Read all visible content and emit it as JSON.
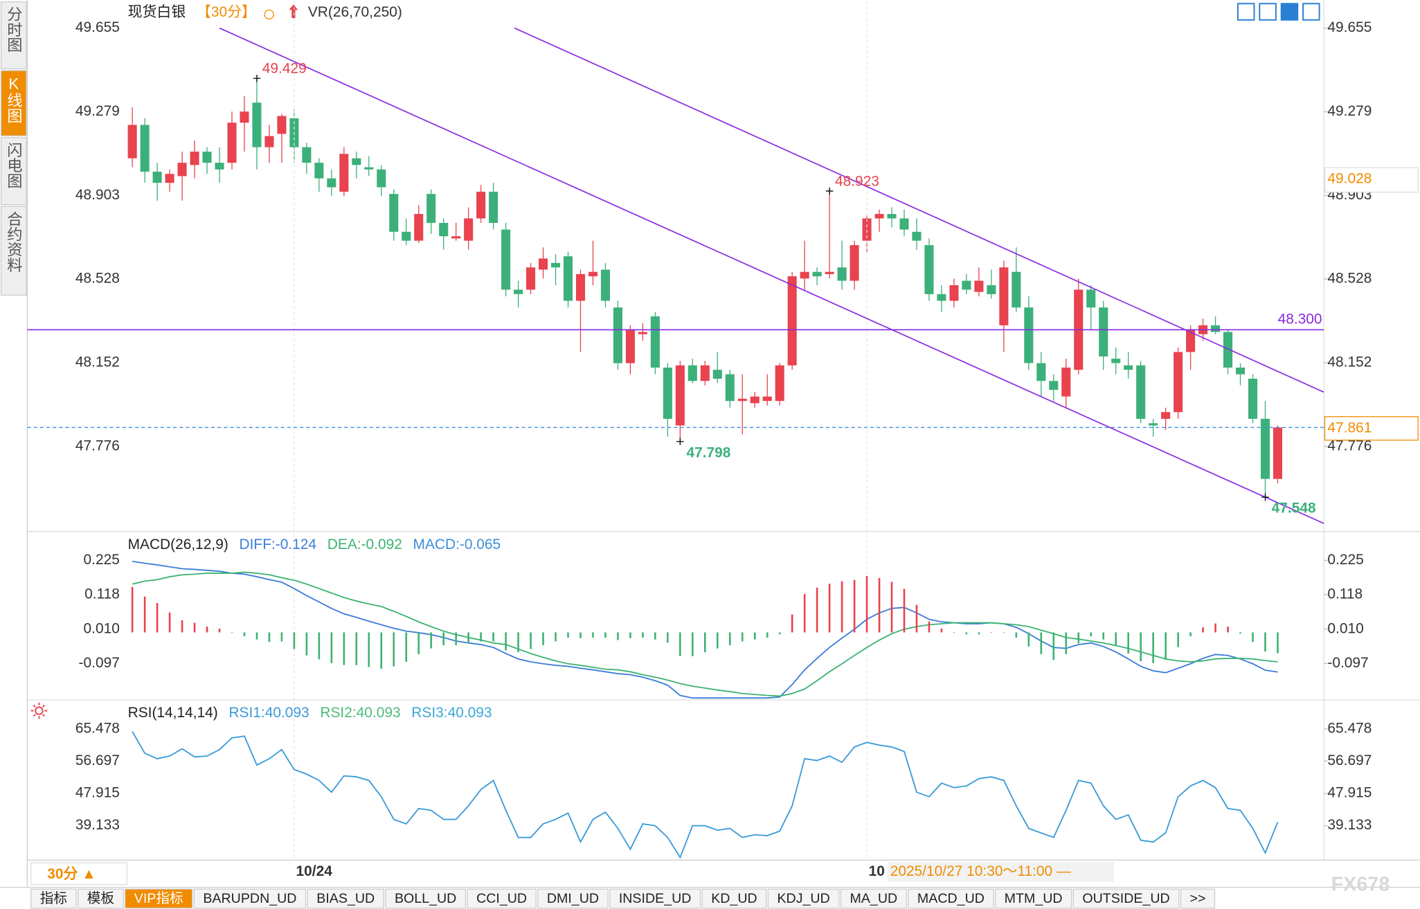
{
  "sidebar": [
    "分时图",
    "K线图",
    "闪电图",
    "合约资料"
  ],
  "chart_data": [
    {
      "type": "candlestick",
      "title": "现货白银",
      "period": "【30分】",
      "indicator": "VR(26,70,250)",
      "categories": [
        null,
        null,
        null,
        null,
        null,
        null,
        null,
        null,
        null,
        null,
        null,
        null,
        null,
        "10/24",
        null,
        null,
        null,
        null,
        null,
        null,
        null,
        null,
        null,
        null,
        null,
        null,
        null,
        null,
        null,
        null,
        null,
        null,
        null,
        null,
        null,
        null,
        null,
        null,
        null,
        null,
        null,
        null,
        null,
        null,
        null,
        null,
        null,
        null,
        null,
        null,
        null,
        null,
        null,
        null,
        null,
        null,
        null,
        null,
        null,
        "10",
        null,
        null,
        null,
        null,
        null,
        null,
        null,
        null,
        null,
        null,
        null,
        null,
        null,
        null,
        null,
        null,
        null,
        null,
        null,
        null,
        null,
        null,
        null,
        null,
        null,
        null,
        null,
        null,
        null,
        null,
        null,
        null,
        null
      ],
      "open": [
        49.07,
        49.22,
        49.01,
        48.96,
        48.99,
        49.04,
        49.1,
        49.05,
        49.05,
        49.23,
        49.32,
        49.12,
        49.18,
        49.25,
        49.12,
        49.05,
        48.98,
        48.92,
        49.07,
        49.03,
        49.02,
        48.91,
        48.74,
        48.7,
        48.91,
        48.78,
        48.71,
        48.7,
        48.8,
        48.92,
        48.75,
        48.48,
        48.48,
        48.57,
        48.6,
        48.63,
        48.43,
        48.54,
        48.57,
        48.4,
        48.15,
        48.28,
        48.36,
        48.13,
        47.87,
        48.14,
        48.07,
        48.12,
        48.1,
        47.98,
        47.97,
        47.98,
        47.98,
        48.14,
        48.53,
        48.56,
        48.55,
        48.58,
        48.52,
        48.7,
        48.8,
        48.82,
        48.8,
        48.74,
        48.68,
        48.46,
        48.43,
        48.52,
        48.47,
        48.5,
        48.32,
        48.56,
        48.4,
        48.15,
        48.07,
        48.0,
        48.12,
        48.48,
        48.4,
        48.17,
        48.14,
        48.14,
        47.88,
        47.9,
        47.93,
        48.2,
        48.28,
        48.32,
        48.29,
        48.13,
        48.08,
        47.9,
        47.63
      ],
      "high": [
        49.3,
        49.25,
        49.05,
        49.02,
        49.1,
        49.15,
        49.12,
        49.12,
        49.28,
        49.35,
        49.429,
        49.22,
        49.27,
        49.29,
        49.14,
        49.07,
        49.02,
        49.12,
        49.1,
        49.08,
        49.04,
        48.93,
        48.8,
        48.86,
        48.93,
        48.8,
        48.78,
        48.85,
        48.95,
        48.96,
        48.78,
        48.52,
        48.6,
        48.67,
        48.64,
        48.65,
        48.57,
        48.7,
        48.6,
        48.43,
        48.32,
        48.33,
        48.38,
        48.15,
        48.16,
        48.17,
        48.16,
        48.2,
        48.12,
        48.1,
        48.02,
        48.1,
        48.15,
        48.56,
        48.7,
        48.58,
        48.923,
        48.7,
        48.7,
        48.82,
        48.84,
        48.85,
        48.84,
        48.8,
        48.71,
        48.5,
        48.53,
        48.55,
        48.58,
        48.57,
        48.61,
        48.67,
        48.45,
        48.2,
        48.1,
        48.17,
        48.53,
        48.5,
        48.43,
        48.22,
        48.2,
        48.16,
        47.9,
        47.95,
        48.22,
        48.32,
        48.35,
        48.36,
        48.3,
        48.15,
        48.1,
        47.98,
        47.87
      ],
      "low": [
        49.03,
        48.96,
        48.88,
        48.92,
        48.88,
        48.98,
        49.0,
        48.96,
        49.02,
        49.1,
        49.02,
        49.05,
        49.05,
        49.05,
        49.0,
        48.92,
        48.9,
        48.9,
        48.98,
        48.99,
        48.9,
        48.7,
        48.68,
        48.69,
        48.73,
        48.66,
        48.7,
        48.66,
        48.78,
        48.75,
        48.45,
        48.4,
        48.46,
        48.53,
        48.5,
        48.4,
        48.2,
        48.5,
        48.4,
        48.12,
        48.1,
        48.25,
        48.1,
        47.82,
        47.798,
        48.06,
        48.05,
        48.06,
        47.95,
        47.83,
        47.95,
        47.96,
        47.96,
        48.12,
        48.48,
        48.5,
        48.53,
        48.48,
        48.48,
        48.65,
        48.74,
        48.76,
        48.72,
        48.66,
        48.43,
        48.38,
        48.4,
        48.46,
        48.45,
        48.44,
        48.2,
        48.38,
        48.12,
        48.0,
        47.98,
        47.95,
        48.1,
        48.3,
        48.12,
        48.1,
        48.08,
        47.88,
        47.82,
        47.85,
        47.9,
        48.12,
        48.25,
        48.28,
        48.1,
        48.05,
        47.88,
        47.548,
        47.61
      ],
      "close": [
        49.22,
        49.01,
        48.96,
        49.0,
        49.05,
        49.1,
        49.05,
        49.02,
        49.23,
        49.28,
        49.12,
        49.17,
        49.26,
        49.12,
        49.05,
        48.98,
        48.94,
        49.09,
        49.04,
        49.02,
        48.94,
        48.74,
        48.7,
        48.82,
        48.78,
        48.72,
        48.72,
        48.8,
        48.92,
        48.78,
        48.48,
        48.46,
        48.58,
        48.62,
        48.58,
        48.43,
        48.55,
        48.56,
        48.43,
        48.15,
        48.3,
        48.29,
        48.13,
        47.9,
        48.14,
        48.07,
        48.14,
        48.08,
        47.98,
        47.99,
        48.0,
        48.0,
        48.14,
        48.54,
        48.56,
        48.54,
        48.56,
        48.52,
        48.68,
        48.8,
        48.82,
        48.8,
        48.75,
        48.7,
        48.46,
        48.43,
        48.5,
        48.48,
        48.52,
        48.46,
        48.58,
        48.4,
        48.15,
        48.07,
        48.03,
        48.13,
        48.48,
        48.4,
        48.18,
        48.15,
        48.12,
        47.9,
        47.87,
        47.93,
        48.2,
        48.3,
        48.32,
        48.29,
        48.13,
        48.1,
        47.9,
        47.63,
        47.861
      ],
      "up_color": "#e8434e",
      "down_color": "#3cb07a",
      "ylim": [
        47.398,
        49.773
      ],
      "yticks": [
        49.655,
        49.279,
        48.903,
        48.528,
        48.152,
        47.776
      ],
      "high_marks": [
        {
          "index": 10,
          "value": 49.429
        },
        {
          "index": 56,
          "value": 48.923
        }
      ],
      "low_marks": [
        {
          "index": 44,
          "value": 47.798
        },
        {
          "index": 91,
          "value": 47.548
        }
      ],
      "hline": {
        "value": 48.3,
        "label": "48.300",
        "color": "#8a2be2"
      },
      "trendlines": [
        {
          "start": [
            7,
            49.655
          ],
          "end": [
            95.7,
            47.43
          ]
        },
        {
          "start": [
            30.7,
            49.655
          ],
          "end": [
            95.7,
            48.02
          ]
        }
      ],
      "trendline_color": "#8a2be2",
      "last_price": {
        "value": 47.861,
        "color": "#3d8fe0",
        "label_color": "#f08c00"
      },
      "crosshair_price": 49.028,
      "cursor_time": "2025/10/27 10:30～11:00 —"
    },
    {
      "type": "macd",
      "title": "MACD(26,12,9)",
      "ylim": [
        -0.208,
        0.307
      ],
      "yticks": [
        0.225,
        0.118,
        {
          "value": 0.01,
          "label": "0.010"
        },
        -0.097
      ],
      "series": [
        {
          "name": "DIFF:-0.124",
          "color": "#3b7dd8",
          "values": [
            0.222,
            0.216,
            0.211,
            0.205,
            0.199,
            0.197,
            0.194,
            0.191,
            0.185,
            0.182,
            0.174,
            0.165,
            0.157,
            0.137,
            0.115,
            0.095,
            0.075,
            0.058,
            0.047,
            0.035,
            0.024,
            0.013,
            0.004,
            -0.001,
            -0.007,
            -0.016,
            -0.027,
            -0.033,
            -0.038,
            -0.047,
            -0.066,
            -0.083,
            -0.092,
            -0.098,
            -0.103,
            -0.106,
            -0.112,
            -0.117,
            -0.123,
            -0.129,
            -0.132,
            -0.14,
            -0.151,
            -0.165,
            -0.197,
            -0.205,
            -0.205,
            -0.205,
            -0.205,
            -0.205,
            -0.205,
            -0.205,
            -0.202,
            -0.163,
            -0.117,
            -0.081,
            -0.047,
            -0.018,
            0.01,
            0.041,
            0.061,
            0.075,
            0.078,
            0.061,
            0.041,
            0.033,
            0.03,
            0.027,
            0.027,
            0.03,
            0.027,
            0.016,
            -0.004,
            -0.027,
            -0.047,
            -0.05,
            -0.038,
            -0.033,
            -0.044,
            -0.061,
            -0.083,
            -0.106,
            -0.12,
            -0.126,
            -0.112,
            -0.098,
            -0.081,
            -0.069,
            -0.072,
            -0.083,
            -0.098,
            -0.118,
            -0.124
          ]
        },
        {
          "name": "DEA:-0.092",
          "color": "#3cb371",
          "values": [
            0.151,
            0.16,
            0.165,
            0.174,
            0.18,
            0.182,
            0.185,
            0.185,
            0.185,
            0.188,
            0.185,
            0.18,
            0.171,
            0.163,
            0.151,
            0.137,
            0.123,
            0.109,
            0.098,
            0.089,
            0.081,
            0.066,
            0.05,
            0.033,
            0.018,
            0.004,
            -0.007,
            -0.016,
            -0.024,
            -0.033,
            -0.038,
            -0.052,
            -0.066,
            -0.078,
            -0.089,
            -0.098,
            -0.103,
            -0.109,
            -0.115,
            -0.117,
            -0.123,
            -0.132,
            -0.14,
            -0.149,
            -0.16,
            -0.168,
            -0.174,
            -0.18,
            -0.185,
            -0.191,
            -0.194,
            -0.197,
            -0.199,
            -0.191,
            -0.177,
            -0.151,
            -0.123,
            -0.098,
            -0.072,
            -0.047,
            -0.024,
            -0.004,
            0.01,
            0.018,
            0.024,
            0.027,
            0.03,
            0.03,
            0.03,
            0.03,
            0.027,
            0.024,
            0.018,
            0.007,
            -0.004,
            -0.016,
            -0.021,
            -0.027,
            -0.033,
            -0.041,
            -0.05,
            -0.061,
            -0.072,
            -0.083,
            -0.089,
            -0.092,
            -0.089,
            -0.083,
            -0.081,
            -0.081,
            -0.083,
            -0.088,
            -0.092
          ]
        },
        {
          "name": "MACD:-0.065",
          "type": "bar",
          "color": "#3cb371",
          "up_color": "#e8434e",
          "legend_color": "#3b8fd8",
          "values": [
            0.142,
            0.112,
            0.092,
            0.062,
            0.038,
            0.03,
            0.018,
            0.012,
            0,
            -0.012,
            -0.022,
            -0.03,
            -0.028,
            -0.052,
            -0.072,
            -0.084,
            -0.096,
            -0.102,
            -0.102,
            -0.108,
            -0.114,
            -0.106,
            -0.092,
            -0.068,
            -0.05,
            -0.04,
            -0.04,
            -0.034,
            -0.028,
            -0.028,
            -0.056,
            -0.062,
            -0.052,
            -0.04,
            -0.028,
            -0.016,
            -0.018,
            -0.016,
            -0.016,
            -0.024,
            -0.018,
            -0.016,
            -0.022,
            -0.032,
            -0.074,
            -0.074,
            -0.062,
            -0.05,
            -0.04,
            -0.028,
            -0.022,
            -0.016,
            -0.006,
            0.056,
            0.12,
            0.14,
            0.152,
            0.16,
            0.164,
            0.176,
            0.17,
            0.158,
            0.136,
            0.086,
            0.034,
            0.012,
            0,
            -0.006,
            -0.006,
            0,
            0,
            -0.016,
            -0.044,
            -0.068,
            -0.086,
            -0.068,
            -0.034,
            -0.012,
            -0.022,
            -0.04,
            -0.066,
            -0.09,
            -0.096,
            -0.086,
            -0.046,
            -0.012,
            0.016,
            0.028,
            0.018,
            -0.004,
            -0.03,
            -0.06,
            -0.065
          ]
        }
      ]
    },
    {
      "type": "rsi",
      "title": "RSI(14,14,14)",
      "ylim": [
        30.27,
        72.62
      ],
      "yticks": [
        65.478,
        56.697,
        47.915,
        39.133
      ],
      "series": [
        {
          "name": "RSI1:40.093",
          "color": "#3a9ad9",
          "values": [
            64.74,
            58.83,
            57.35,
            58.09,
            60.06,
            57.85,
            58.09,
            59.82,
            63.02,
            63.51,
            55.63,
            57.35,
            59.82,
            54.4,
            53.17,
            51.44,
            48.24,
            52.68,
            52.43,
            51.44,
            47.01,
            40.85,
            39.63,
            43.81,
            43.32,
            40.85,
            40.85,
            44.55,
            48.98,
            51.44,
            43.32,
            35.94,
            35.94,
            39.63,
            40.85,
            42.58,
            34.7,
            40.85,
            42.83,
            38.4,
            32.73,
            39.63,
            39.13,
            35.94,
            30.52,
            39.13,
            39.13,
            37.9,
            38.4,
            35.94,
            36.67,
            36.43,
            37.66,
            44.55,
            57.35,
            56.86,
            58.09,
            56.37,
            60.55,
            61.79,
            61.05,
            60.55,
            59.32,
            48.24,
            47.01,
            50.71,
            49.48,
            49.97,
            51.94,
            52.43,
            51.44,
            44.55,
            38.4,
            37.17,
            35.94,
            43.32,
            51.44,
            50.71,
            44.55,
            40.85,
            42.09,
            35.2,
            34.7,
            37.17,
            47.01,
            49.97,
            51.44,
            49.48,
            43.81,
            43.32,
            38.4,
            31.75,
            40.093
          ]
        }
      ],
      "legend_extra": [
        {
          "name": "RSI2:40.093",
          "color": "#4cbb7a"
        },
        {
          "name": "RSI3:40.093",
          "color": "#3aa8d8"
        }
      ]
    }
  ],
  "toolbar": {
    "period": "30分 ▲",
    "tabs": [
      "指标",
      "模板",
      "VIP指标",
      "BARUPDN_UD",
      "BIAS_UD",
      "BOLL_UD",
      "CCI_UD",
      "DMI_UD",
      "INSIDE_UD",
      "KD_UD",
      "KDJ_UD",
      "MA_UD",
      "MACD_UD",
      "MTM_UD",
      "OUTSIDE_UD",
      ">>"
    ],
    "active_index": 2
  },
  "watermark": "FX678"
}
